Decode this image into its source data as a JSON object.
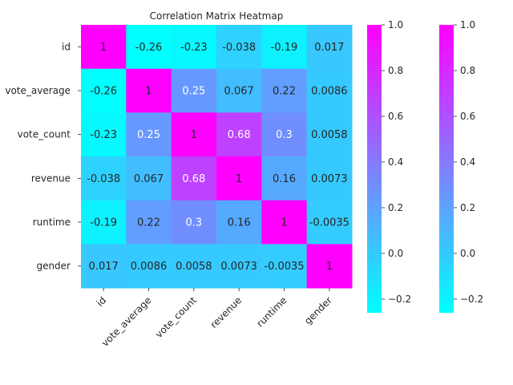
{
  "chart_data": {
    "type": "heatmap",
    "title": "Correlation Matrix Heatmap",
    "xlabel": "",
    "ylabel": "",
    "labels": [
      "id",
      "vote_average",
      "vote_count",
      "revenue",
      "runtime",
      "gender"
    ],
    "values": [
      [
        1,
        -0.26,
        -0.23,
        -0.038,
        -0.19,
        0.017
      ],
      [
        -0.26,
        1,
        0.25,
        0.067,
        0.22,
        0.0086
      ],
      [
        -0.23,
        0.25,
        1,
        0.68,
        0.3,
        0.0058
      ],
      [
        -0.038,
        0.067,
        0.68,
        1,
        0.16,
        0.0073
      ],
      [
        -0.19,
        0.22,
        0.3,
        0.16,
        1,
        -0.0035
      ],
      [
        0.017,
        0.0086,
        0.0058,
        0.0073,
        -0.0035,
        1
      ]
    ],
    "cell_labels": [
      [
        "1",
        "-0.26",
        "-0.23",
        "-0.038",
        "-0.19",
        "0.017"
      ],
      [
        "-0.26",
        "1",
        "0.25",
        "0.067",
        "0.22",
        "0.0086"
      ],
      [
        "-0.23",
        "0.25",
        "1",
        "0.68",
        "0.3",
        "0.0058"
      ],
      [
        "-0.038",
        "0.067",
        "0.68",
        "1",
        "0.16",
        "0.0073"
      ],
      [
        "-0.19",
        "0.22",
        "0.3",
        "0.16",
        "1",
        "-0.0035"
      ],
      [
        "0.017",
        "0.0086",
        "0.0058",
        "0.0073",
        "-0.0035",
        "1"
      ]
    ],
    "colormap": "cool",
    "color_low": "#00ffff",
    "color_high": "#ff00ff",
    "vmin": -0.26,
    "vmax": 1,
    "colorbars": [
      {
        "ticks": [
          "1.0",
          "0.8",
          "0.6",
          "0.4",
          "0.2",
          "0.0",
          "−0.2"
        ],
        "tick_values": [
          1.0,
          0.8,
          0.6,
          0.4,
          0.2,
          0.0,
          -0.2
        ]
      },
      {
        "ticks": [
          "1.0",
          "0.8",
          "0.6",
          "0.4",
          "0.2",
          "0.0",
          "−0.2"
        ],
        "tick_values": [
          1.0,
          0.8,
          0.6,
          0.4,
          0.2,
          0.0,
          -0.2
        ]
      }
    ],
    "grid": false,
    "legend": "colorbar-right"
  }
}
